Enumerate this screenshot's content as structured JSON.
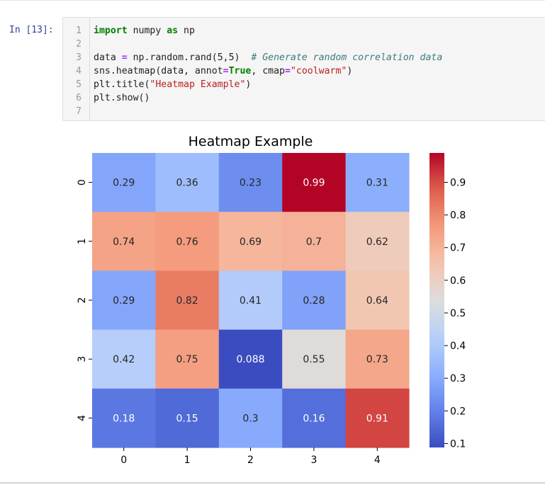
{
  "cell": {
    "prompt": "In [13]:",
    "line_numbers": [
      "1",
      "2",
      "3",
      "4",
      "5",
      "6",
      "7"
    ],
    "lines": [
      [
        {
          "t": "import",
          "c": "kw"
        },
        {
          "t": " numpy ",
          "c": ""
        },
        {
          "t": "as",
          "c": "kw"
        },
        {
          "t": " np",
          "c": ""
        }
      ],
      [],
      [
        {
          "t": "data ",
          "c": ""
        },
        {
          "t": "=",
          "c": "op"
        },
        {
          "t": " np.random.rand(5,5)  ",
          "c": ""
        },
        {
          "t": "# Generate random correlation data",
          "c": "cmt"
        }
      ],
      [
        {
          "t": "sns.heatmap(data, annot",
          "c": ""
        },
        {
          "t": "=",
          "c": "op"
        },
        {
          "t": "True",
          "c": "kw"
        },
        {
          "t": ", cmap",
          "c": ""
        },
        {
          "t": "=",
          "c": "op"
        },
        {
          "t": "\"coolwarm\"",
          "c": "str"
        },
        {
          "t": ")",
          "c": ""
        }
      ],
      [
        {
          "t": "plt.title(",
          "c": ""
        },
        {
          "t": "\"Heatmap Example\"",
          "c": "str"
        },
        {
          "t": ")",
          "c": ""
        }
      ],
      [
        {
          "t": "plt.show()",
          "c": ""
        }
      ],
      []
    ]
  },
  "chart_data": {
    "type": "heatmap",
    "title": "Heatmap Example",
    "x_categories": [
      "0",
      "1",
      "2",
      "3",
      "4"
    ],
    "y_categories": [
      "0",
      "1",
      "2",
      "3",
      "4"
    ],
    "values": [
      [
        0.29,
        0.36,
        0.23,
        0.99,
        0.31
      ],
      [
        0.74,
        0.76,
        0.69,
        0.7,
        0.62
      ],
      [
        0.29,
        0.82,
        0.41,
        0.28,
        0.64
      ],
      [
        0.42,
        0.75,
        0.088,
        0.55,
        0.73
      ],
      [
        0.18,
        0.15,
        0.3,
        0.16,
        0.91
      ]
    ],
    "colormap": "coolwarm",
    "vmin": 0.088,
    "vmax": 0.99,
    "colorbar_ticks": [
      "0.1",
      "0.2",
      "0.3",
      "0.4",
      "0.5",
      "0.6",
      "0.7",
      "0.8",
      "0.9"
    ],
    "colorbar_tick_values": [
      0.1,
      0.2,
      0.3,
      0.4,
      0.5,
      0.6,
      0.7,
      0.8,
      0.9
    ],
    "legend": "right"
  }
}
